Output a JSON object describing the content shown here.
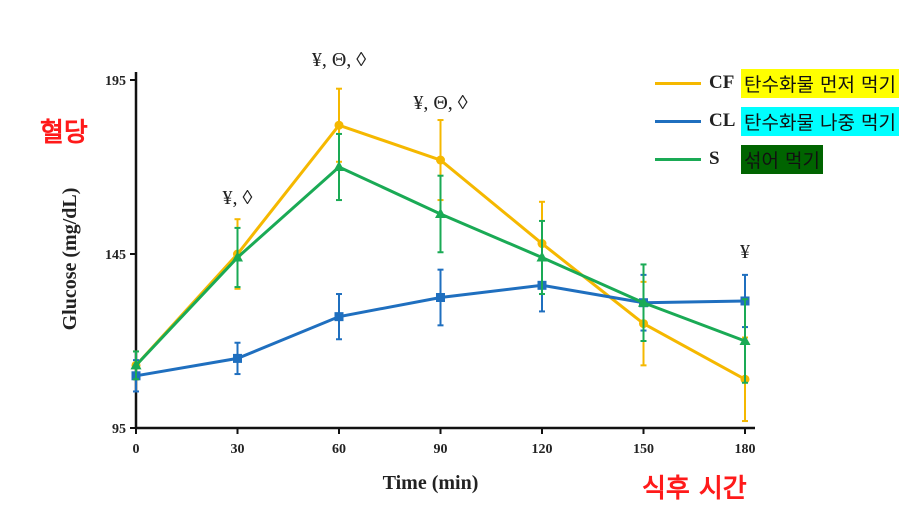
{
  "chart_data": {
    "type": "line",
    "xlabel": "Time (min)",
    "ylabel": "Glucose (mg/dL)",
    "x": [
      0,
      30,
      60,
      90,
      120,
      150,
      180
    ],
    "xticks": [
      "0",
      "30",
      "60",
      "90",
      "120",
      "150",
      "180"
    ],
    "yticks": [
      "95",
      "145",
      "195"
    ],
    "xlim": [
      0,
      180
    ],
    "ylim": [
      95,
      195
    ],
    "grid": false,
    "legend_position": "top-right",
    "series": [
      {
        "name": "CF",
        "label_kr": "탄수화물 먼저 먹기",
        "color": "#f5b800",
        "marker": "circle",
        "label_bg": "#ffff00",
        "values": [
          113,
          145,
          182,
          172,
          148,
          125,
          109
        ],
        "errors": [
          4,
          10,
          10.5,
          11.5,
          12,
          12,
          12
        ]
      },
      {
        "name": "CL",
        "label_kr": "탄수화물 나중 먹기",
        "color": "#1f6fbf",
        "marker": "square",
        "label_bg": "#00ffff",
        "values": [
          110,
          115,
          127,
          132.5,
          136,
          131,
          131.5
        ],
        "errors": [
          4.5,
          4.5,
          6.5,
          8,
          7.5,
          8,
          7.5
        ]
      },
      {
        "name": "S",
        "label_kr": "섞어 먹기",
        "color": "#1aaa55",
        "marker": "triangle",
        "label_bg": "#006400",
        "values": [
          113,
          144,
          170,
          156.5,
          144,
          131,
          120
        ],
        "errors": [
          4,
          8.5,
          9.5,
          11,
          10.5,
          11,
          12
        ]
      }
    ],
    "annotations": [
      {
        "x": 30,
        "text": "¥, ◊"
      },
      {
        "x": 60,
        "text": "¥, Θ, ◊"
      },
      {
        "x": 90,
        "text": "¥, Θ, ◊"
      },
      {
        "x": 180,
        "text": "¥"
      }
    ]
  },
  "overlay": {
    "y_korean": "혈당",
    "x_korean": "식후 시간"
  }
}
